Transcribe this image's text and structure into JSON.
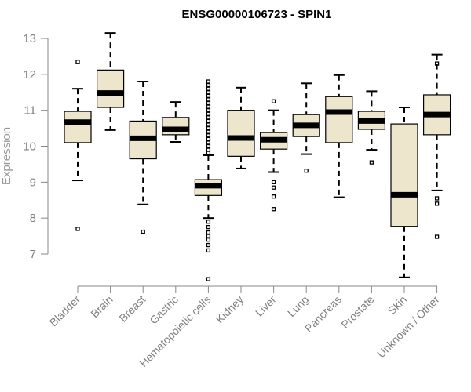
{
  "chart_data": {
    "type": "boxplot",
    "title": "ENSG00000106723 - SPIN1",
    "xlabel": "",
    "ylabel": "Expression",
    "ylim": [
      6.0,
      13.3
    ],
    "yticks": [
      7,
      8,
      9,
      10,
      11,
      12,
      13
    ],
    "categories": [
      "Bladder",
      "Brain",
      "Breast",
      "Gastric",
      "Hematopoietic cells",
      "Kidney",
      "Liver",
      "Lung",
      "Pancreas",
      "Prostate",
      "Skin",
      "Unknown / Other"
    ],
    "boxes": [
      {
        "name": "Bladder",
        "whisker_low": 9.05,
        "q1": 10.1,
        "median": 10.67,
        "q3": 10.97,
        "whisker_high": 11.6,
        "outliers": [
          12.35,
          7.7
        ]
      },
      {
        "name": "Brain",
        "whisker_low": 10.45,
        "q1": 11.08,
        "median": 11.48,
        "q3": 12.12,
        "whisker_high": 13.15,
        "outliers": []
      },
      {
        "name": "Breast",
        "whisker_low": 8.38,
        "q1": 9.65,
        "median": 10.22,
        "q3": 10.7,
        "whisker_high": 11.8,
        "outliers": [
          7.62
        ]
      },
      {
        "name": "Gastric",
        "whisker_low": 10.12,
        "q1": 10.32,
        "median": 10.47,
        "q3": 10.8,
        "whisker_high": 11.23,
        "outliers": []
      },
      {
        "name": "Hematopoietic cells",
        "whisker_low": 8.0,
        "q1": 8.63,
        "median": 8.9,
        "q3": 9.07,
        "whisker_high": 9.75,
        "outliers": [
          11.8,
          11.7,
          11.6,
          11.5,
          11.4,
          11.3,
          11.2,
          11.1,
          11.0,
          10.9,
          10.8,
          10.7,
          10.6,
          10.5,
          10.4,
          10.3,
          10.2,
          10.1,
          10.0,
          9.9,
          9.82,
          7.9,
          7.75,
          7.6,
          7.5,
          7.4,
          7.25,
          7.1,
          6.3
        ]
      },
      {
        "name": "Kidney",
        "whisker_low": 9.38,
        "q1": 9.72,
        "median": 10.23,
        "q3": 11.0,
        "whisker_high": 11.63,
        "outliers": []
      },
      {
        "name": "Liver",
        "whisker_low": 9.28,
        "q1": 9.92,
        "median": 10.18,
        "q3": 10.38,
        "whisker_high": 11.0,
        "outliers": [
          11.25,
          9.0,
          8.85,
          8.6,
          8.25
        ]
      },
      {
        "name": "Lung",
        "whisker_low": 9.78,
        "q1": 10.27,
        "median": 10.58,
        "q3": 10.88,
        "whisker_high": 11.75,
        "outliers": [
          9.32
        ]
      },
      {
        "name": "Pancreas",
        "whisker_low": 8.58,
        "q1": 10.1,
        "median": 10.95,
        "q3": 11.38,
        "whisker_high": 11.98,
        "outliers": []
      },
      {
        "name": "Prostate",
        "whisker_low": 9.9,
        "q1": 10.47,
        "median": 10.7,
        "q3": 10.97,
        "whisker_high": 11.53,
        "outliers": [
          9.55
        ]
      },
      {
        "name": "Skin",
        "whisker_low": 6.35,
        "q1": 7.77,
        "median": 8.65,
        "q3": 10.62,
        "whisker_high": 11.08,
        "outliers": []
      },
      {
        "name": "Unknown / Other",
        "whisker_low": 8.77,
        "q1": 10.32,
        "median": 10.88,
        "q3": 11.43,
        "whisker_high": 12.55,
        "outliers": [
          12.3,
          8.55,
          8.4,
          7.48
        ]
      }
    ],
    "grid": false,
    "legend": "none"
  },
  "colors": {
    "box_fill": "#ede6cd",
    "box_stroke": "#000000",
    "axis": "#888888",
    "tick_label": "#808080"
  }
}
